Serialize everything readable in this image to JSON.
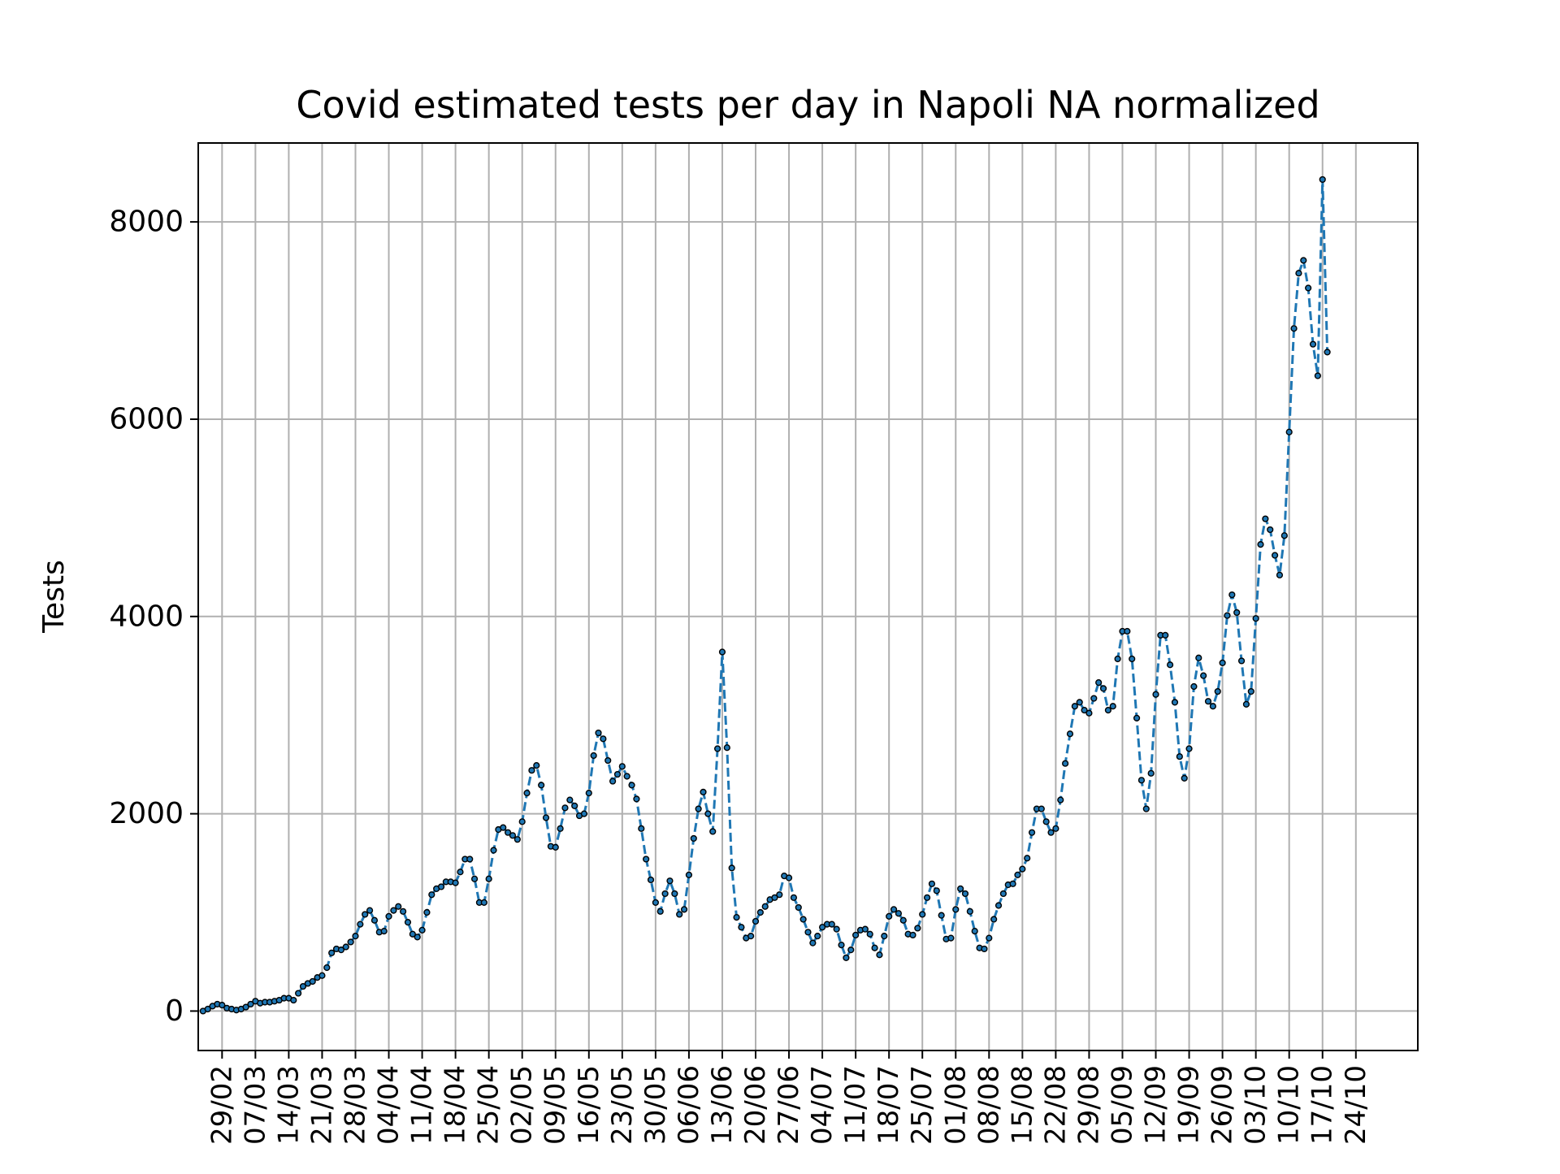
{
  "chart_data": {
    "type": "line",
    "title": "Covid estimated tests per day in Napoli NA normalized",
    "xlabel": "",
    "ylabel": "Tests",
    "xlim": [
      "2020-02-24",
      "2020-11-06"
    ],
    "ylim": [
      -400,
      8800
    ],
    "grid": true,
    "legend": "none",
    "line_style": "dashed",
    "line_color": "#1f77b4",
    "marker_color": "#1f77b4",
    "marker_edge_color": "#000000",
    "x_start": "2020-02-25",
    "x_ticks": [
      "2020-02-29",
      "2020-03-07",
      "2020-03-14",
      "2020-03-21",
      "2020-03-28",
      "2020-04-04",
      "2020-04-11",
      "2020-04-18",
      "2020-04-25",
      "2020-05-02",
      "2020-05-09",
      "2020-05-16",
      "2020-05-23",
      "2020-05-30",
      "2020-06-06",
      "2020-06-13",
      "2020-06-20",
      "2020-06-27",
      "2020-07-04",
      "2020-07-11",
      "2020-07-18",
      "2020-07-25",
      "2020-08-01",
      "2020-08-08",
      "2020-08-15",
      "2020-08-22",
      "2020-08-29",
      "2020-09-05",
      "2020-09-12",
      "2020-09-19",
      "2020-09-26",
      "2020-10-03",
      "2020-10-10",
      "2020-10-17",
      "2020-10-24"
    ],
    "x_tick_labels": [
      "29/02",
      "07/03",
      "14/03",
      "21/03",
      "28/03",
      "04/04",
      "11/04",
      "18/04",
      "25/04",
      "02/05",
      "09/05",
      "16/05",
      "23/05",
      "30/05",
      "06/06",
      "13/06",
      "20/06",
      "27/06",
      "04/07",
      "11/07",
      "18/07",
      "25/07",
      "01/08",
      "08/08",
      "15/08",
      "22/08",
      "29/08",
      "05/09",
      "12/09",
      "19/09",
      "26/09",
      "03/10",
      "10/10",
      "17/10",
      "24/10"
    ],
    "y_ticks": [
      0,
      2000,
      4000,
      6000,
      8000
    ],
    "y_tick_labels": [
      "0",
      "2000",
      "4000",
      "6000",
      "8000"
    ],
    "series": [
      {
        "values": [
          0,
          20,
          50,
          70,
          60,
          30,
          20,
          10,
          20,
          40,
          70,
          100,
          80,
          90,
          90,
          100,
          110,
          130,
          130,
          110,
          180,
          250,
          280,
          300,
          340,
          360,
          440,
          590,
          630,
          620,
          650,
          700,
          760,
          880,
          980,
          1020,
          920,
          800,
          810,
          960,
          1020,
          1060,
          1010,
          900,
          780,
          750,
          820,
          1000,
          1180,
          1240,
          1260,
          1310,
          1310,
          1300,
          1410,
          1540,
          1540,
          1340,
          1100,
          1100,
          1340,
          1630,
          1840,
          1860,
          1810,
          1780,
          1740,
          1920,
          2210,
          2440,
          2490,
          2290,
          1960,
          1670,
          1660,
          1850,
          2060,
          2140,
          2080,
          1980,
          2000,
          2210,
          2590,
          2820,
          2760,
          2540,
          2330,
          2400,
          2480,
          2380,
          2290,
          2150,
          1850,
          1540,
          1330,
          1100,
          1010,
          1190,
          1320,
          1190,
          980,
          1030,
          1380,
          1750,
          2050,
          2220,
          2000,
          1820,
          2660,
          3640,
          2670,
          1450,
          950,
          850,
          740,
          760,
          910,
          1000,
          1060,
          1130,
          1150,
          1180,
          1370,
          1350,
          1150,
          1050,
          930,
          800,
          690,
          760,
          850,
          880,
          880,
          830,
          670,
          540,
          620,
          770,
          820,
          830,
          780,
          640,
          570,
          760,
          960,
          1030,
          990,
          920,
          780,
          770,
          840,
          980,
          1150,
          1290,
          1220,
          970,
          730,
          740,
          1030,
          1240,
          1190,
          1010,
          810,
          640,
          630,
          740,
          930,
          1070,
          1190,
          1280,
          1290,
          1380,
          1440,
          1550,
          1810,
          2050,
          2050,
          1920,
          1810,
          1850,
          2140,
          2510,
          2810,
          3090,
          3130,
          3050,
          3020,
          3170,
          3330,
          3270,
          3050,
          3090,
          3570,
          3850,
          3850,
          3570,
          2970,
          2340,
          2050,
          2410,
          3210,
          3810,
          3810,
          3510,
          3130,
          2580,
          2360,
          2660,
          3290,
          3580,
          3400,
          3140,
          3090,
          3240,
          3530,
          4010,
          4220,
          4040,
          3550,
          3110,
          3240,
          3980,
          4730,
          4990,
          4880,
          4620,
          4420,
          4820,
          5870,
          6920,
          7480,
          7610,
          7330,
          6760,
          6440,
          8430,
          6680
        ]
      }
    ]
  }
}
